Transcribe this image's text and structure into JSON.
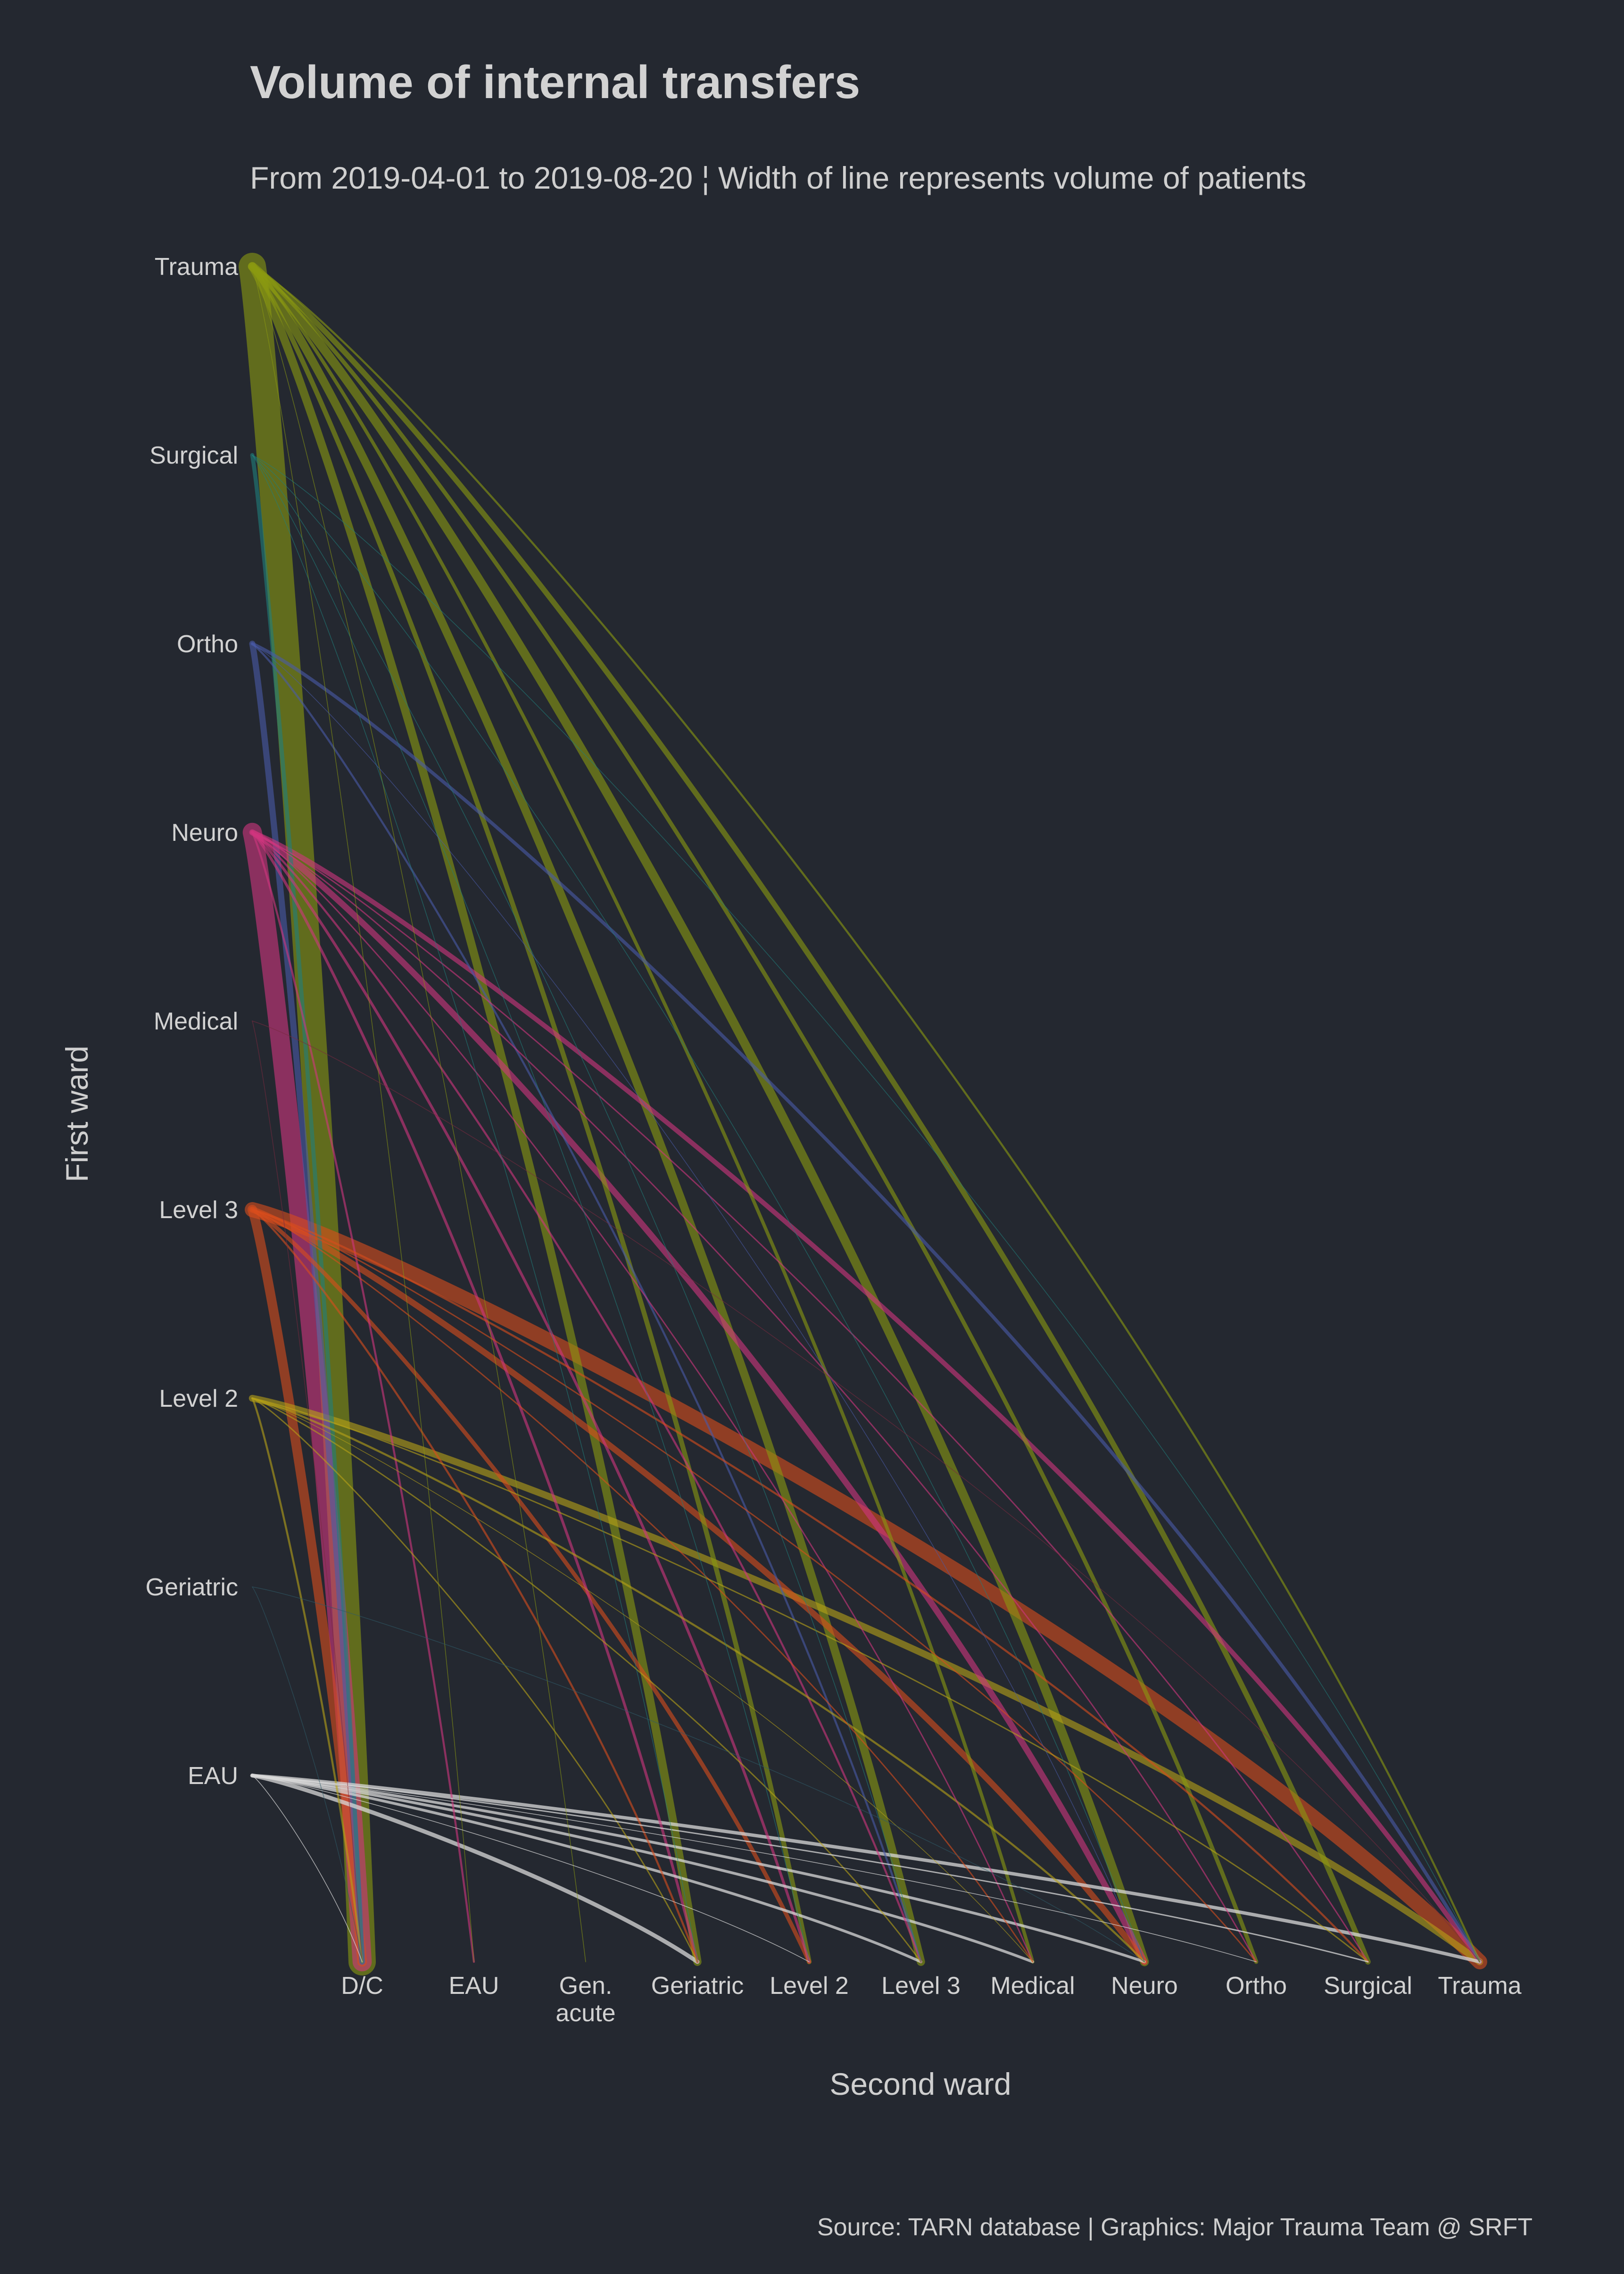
{
  "chart_data": {
    "type": "arc-flow",
    "title": "Volume of internal transfers",
    "subtitle": "From 2019-04-01 to 2019-08-20 ¦ Width of line represents volume of patients",
    "xlabel": "Second ward",
    "ylabel": "First ward",
    "caption": "Source: TARN database | Graphics: Major Trauma Team @ SRFT",
    "first_wards": [
      "Trauma",
      "Surgical",
      "Ortho",
      "Neuro",
      "Medical",
      "Level 3",
      "Level 2",
      "Geriatric",
      "EAU"
    ],
    "second_wards": [
      "D/C",
      "EAU",
      "Gen.\nacute",
      "Geriatric",
      "Level 2",
      "Level 3",
      "Medical",
      "Neuro",
      "Ortho",
      "Surgical",
      "Trauma"
    ],
    "colors": {
      "Trauma": "#8a9a10",
      "Surgical": "#1f7f7c",
      "Ortho": "#4a5aa8",
      "Neuro": "#d0357f",
      "Medical": "#7a2a40",
      "Level 3": "#d84c1c",
      "Level 2": "#b8a218",
      "Geriatric": "#2f5a68",
      "EAU": "#d8d8d8"
    },
    "links": [
      {
        "from": "Trauma",
        "to": "D/C",
        "value": 40
      },
      {
        "from": "Trauma",
        "to": "EAU",
        "value": 1
      },
      {
        "from": "Trauma",
        "to": "Gen.\nacute",
        "value": 1
      },
      {
        "from": "Trauma",
        "to": "Geriatric",
        "value": 12
      },
      {
        "from": "Trauma",
        "to": "Level 2",
        "value": 7
      },
      {
        "from": "Trauma",
        "to": "Level 3",
        "value": 12
      },
      {
        "from": "Trauma",
        "to": "Medical",
        "value": 5
      },
      {
        "from": "Trauma",
        "to": "Neuro",
        "value": 13
      },
      {
        "from": "Trauma",
        "to": "Ortho",
        "value": 6
      },
      {
        "from": "Trauma",
        "to": "Surgical",
        "value": 8
      },
      {
        "from": "Trauma",
        "to": "Trauma",
        "value": 3
      },
      {
        "from": "Surgical",
        "to": "D/C",
        "value": 6
      },
      {
        "from": "Surgical",
        "to": "Geriatric",
        "value": 1
      },
      {
        "from": "Surgical",
        "to": "Level 2",
        "value": 1
      },
      {
        "from": "Surgical",
        "to": "Level 3",
        "value": 1
      },
      {
        "from": "Surgical",
        "to": "Neuro",
        "value": 1
      },
      {
        "from": "Surgical",
        "to": "Trauma",
        "value": 1
      },
      {
        "from": "Ortho",
        "to": "D/C",
        "value": 9
      },
      {
        "from": "Ortho",
        "to": "Level 3",
        "value": 3
      },
      {
        "from": "Ortho",
        "to": "Neuro",
        "value": 1
      },
      {
        "from": "Ortho",
        "to": "Trauma",
        "value": 5
      },
      {
        "from": "Neuro",
        "to": "D/C",
        "value": 28
      },
      {
        "from": "Neuro",
        "to": "EAU",
        "value": 3
      },
      {
        "from": "Neuro",
        "to": "Geriatric",
        "value": 4
      },
      {
        "from": "Neuro",
        "to": "Level 2",
        "value": 4
      },
      {
        "from": "Neuro",
        "to": "Level 3",
        "value": 3
      },
      {
        "from": "Neuro",
        "to": "Medical",
        "value": 2
      },
      {
        "from": "Neuro",
        "to": "Neuro",
        "value": 9
      },
      {
        "from": "Neuro",
        "to": "Ortho",
        "value": 2
      },
      {
        "from": "Neuro",
        "to": "Surgical",
        "value": 2
      },
      {
        "from": "Neuro",
        "to": "Trauma",
        "value": 7
      },
      {
        "from": "Medical",
        "to": "D/C",
        "value": 1
      },
      {
        "from": "Medical",
        "to": "Trauma",
        "value": 1
      },
      {
        "from": "Level 3",
        "to": "D/C",
        "value": 14
      },
      {
        "from": "Level 3",
        "to": "Geriatric",
        "value": 3
      },
      {
        "from": "Level 3",
        "to": "Level 2",
        "value": 6
      },
      {
        "from": "Level 3",
        "to": "Medical",
        "value": 2
      },
      {
        "from": "Level 3",
        "to": "Neuro",
        "value": 9
      },
      {
        "from": "Level 3",
        "to": "Ortho",
        "value": 2
      },
      {
        "from": "Level 3",
        "to": "Surgical",
        "value": 3
      },
      {
        "from": "Level 3",
        "to": "Trauma",
        "value": 22
      },
      {
        "from": "Level 2",
        "to": "D/C",
        "value": 3
      },
      {
        "from": "Level 2",
        "to": "Geriatric",
        "value": 2
      },
      {
        "from": "Level 2",
        "to": "Level 3",
        "value": 2
      },
      {
        "from": "Level 2",
        "to": "Medical",
        "value": 1
      },
      {
        "from": "Level 2",
        "to": "Neuro",
        "value": 3
      },
      {
        "from": "Level 2",
        "to": "Surgical",
        "value": 2
      },
      {
        "from": "Level 2",
        "to": "Trauma",
        "value": 10
      },
      {
        "from": "Geriatric",
        "to": "D/C",
        "value": 1
      },
      {
        "from": "Geriatric",
        "to": "Neuro",
        "value": 1
      },
      {
        "from": "EAU",
        "to": "D/C",
        "value": 1
      },
      {
        "from": "EAU",
        "to": "Geriatric",
        "value": 6
      },
      {
        "from": "EAU",
        "to": "Level 2",
        "value": 1
      },
      {
        "from": "EAU",
        "to": "Level 3",
        "value": 4
      },
      {
        "from": "EAU",
        "to": "Medical",
        "value": 4
      },
      {
        "from": "EAU",
        "to": "Neuro",
        "value": 4
      },
      {
        "from": "EAU",
        "to": "Ortho",
        "value": 1
      },
      {
        "from": "EAU",
        "to": "Surgical",
        "value": 2
      },
      {
        "from": "EAU",
        "to": "Trauma",
        "value": 5
      }
    ]
  }
}
